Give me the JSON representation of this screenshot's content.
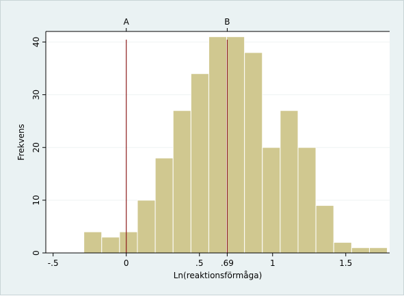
{
  "chart_data": {
    "type": "bar",
    "xlabel": "Ln(reaktionsförmåga)",
    "ylabel": "Frekvens",
    "xlim": [
      -0.55,
      1.8
    ],
    "ylim": [
      0,
      42
    ],
    "bin_width": 0.122,
    "bins": [
      {
        "start": -0.29,
        "value": 4
      },
      {
        "start": -0.168,
        "value": 3
      },
      {
        "start": -0.046,
        "value": 4
      },
      {
        "start": 0.076,
        "value": 10
      },
      {
        "start": 0.198,
        "value": 18
      },
      {
        "start": 0.32,
        "value": 27
      },
      {
        "start": 0.442,
        "value": 34
      },
      {
        "start": 0.564,
        "value": 41
      },
      {
        "start": 0.686,
        "value": 41
      },
      {
        "start": 0.808,
        "value": 38
      },
      {
        "start": 0.93,
        "value": 20
      },
      {
        "start": 1.052,
        "value": 27
      },
      {
        "start": 1.174,
        "value": 20
      },
      {
        "start": 1.296,
        "value": 9
      },
      {
        "start": 1.418,
        "value": 2
      },
      {
        "start": 1.54,
        "value": 1
      },
      {
        "start": 1.662,
        "value": 1
      }
    ],
    "x_ticks": [
      {
        "value": -0.5,
        "label": "-.5"
      },
      {
        "value": 0,
        "label": "0"
      },
      {
        "value": 0.5,
        "label": ".5"
      },
      {
        "value": 0.69,
        "label": ".69"
      },
      {
        "value": 1,
        "label": "1"
      },
      {
        "value": 1.5,
        "label": "1.5"
      }
    ],
    "y_ticks": [
      {
        "value": 0,
        "label": "0"
      },
      {
        "value": 10,
        "label": "10"
      },
      {
        "value": 20,
        "label": "20"
      },
      {
        "value": 30,
        "label": "30"
      },
      {
        "value": 40,
        "label": "40"
      }
    ],
    "reference_lines": [
      {
        "x": 0,
        "label": "A"
      },
      {
        "x": 0.69,
        "label": "B"
      }
    ],
    "grid": true,
    "colors": {
      "bar_fill": "#d0c890",
      "bar_stroke": "#ffffff",
      "reference_line": "#8b1a1a",
      "grid": "#eef2f3",
      "plot_bg": "#ffffff",
      "outer_bg": "#eaf2f3"
    }
  }
}
